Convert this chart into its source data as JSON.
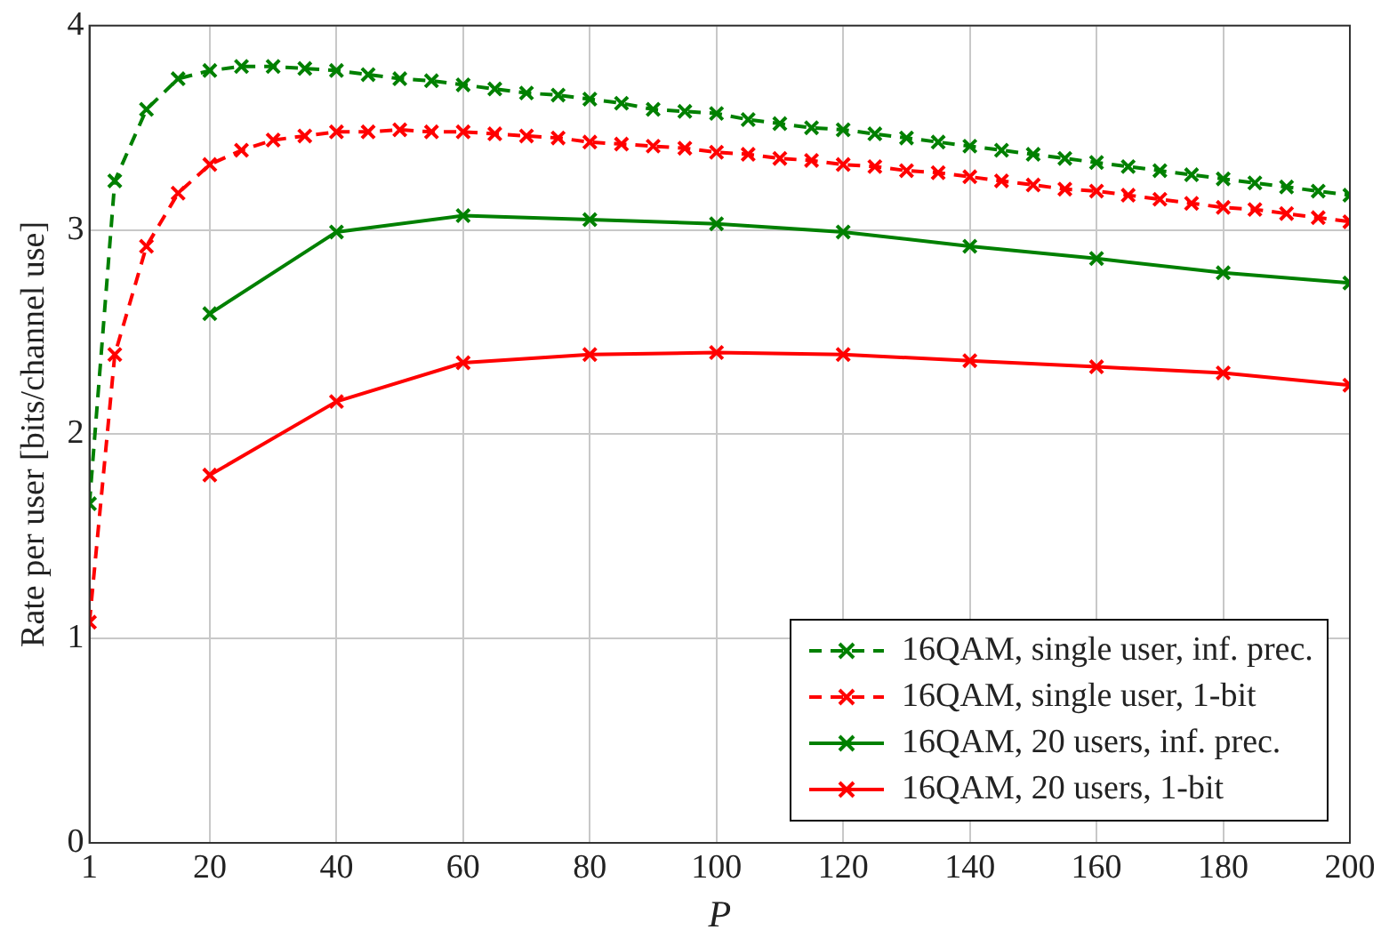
{
  "chart_data": {
    "type": "line",
    "xlabel": "P",
    "ylabel": "Rate per user [bits/channel use]",
    "xlim": [
      1,
      200
    ],
    "xticks": [
      1,
      20,
      40,
      60,
      80,
      100,
      120,
      140,
      160,
      180,
      200
    ],
    "ylim": [
      0,
      4
    ],
    "yticks": [
      0,
      1,
      2,
      3,
      4
    ],
    "grid": true,
    "legend": "bottom right",
    "marker": "cross",
    "series": [
      {
        "name": "16QAM, single user, inf. prec.",
        "color": "#008000",
        "line_style": "dashed",
        "x": [
          1,
          5,
          10,
          15,
          20,
          25,
          30,
          35,
          40,
          45,
          50,
          55,
          60,
          65,
          70,
          75,
          80,
          85,
          90,
          95,
          100,
          105,
          110,
          115,
          120,
          125,
          130,
          135,
          140,
          145,
          150,
          155,
          160,
          165,
          170,
          175,
          180,
          185,
          190,
          195,
          200
        ],
        "values": [
          1.66,
          3.24,
          3.59,
          3.74,
          3.78,
          3.8,
          3.8,
          3.79,
          3.78,
          3.76,
          3.74,
          3.73,
          3.71,
          3.69,
          3.67,
          3.66,
          3.64,
          3.62,
          3.59,
          3.58,
          3.57,
          3.54,
          3.52,
          3.5,
          3.49,
          3.47,
          3.45,
          3.43,
          3.41,
          3.39,
          3.37,
          3.35,
          3.33,
          3.31,
          3.29,
          3.27,
          3.25,
          3.23,
          3.21,
          3.19,
          3.17
        ]
      },
      {
        "name": "16QAM, single user, 1-bit",
        "color": "#ff0000",
        "line_style": "dashed",
        "x": [
          1,
          5,
          10,
          15,
          20,
          25,
          30,
          35,
          40,
          45,
          50,
          55,
          60,
          65,
          70,
          75,
          80,
          85,
          90,
          95,
          100,
          105,
          110,
          115,
          120,
          125,
          130,
          135,
          140,
          145,
          150,
          155,
          160,
          165,
          170,
          175,
          180,
          185,
          190,
          195,
          200
        ],
        "values": [
          1.08,
          2.39,
          2.92,
          3.18,
          3.32,
          3.39,
          3.44,
          3.46,
          3.48,
          3.48,
          3.49,
          3.48,
          3.48,
          3.47,
          3.46,
          3.45,
          3.43,
          3.42,
          3.41,
          3.4,
          3.38,
          3.37,
          3.35,
          3.34,
          3.32,
          3.31,
          3.29,
          3.28,
          3.26,
          3.24,
          3.22,
          3.2,
          3.19,
          3.17,
          3.15,
          3.13,
          3.11,
          3.1,
          3.08,
          3.06,
          3.04
        ]
      },
      {
        "name": "16QAM, 20 users, inf. prec.",
        "color": "#008000",
        "line_style": "solid",
        "x": [
          20,
          40,
          60,
          80,
          100,
          120,
          140,
          160,
          180,
          200
        ],
        "values": [
          2.59,
          2.99,
          3.07,
          3.05,
          3.03,
          2.99,
          2.92,
          2.86,
          2.79,
          2.74
        ]
      },
      {
        "name": "16QAM, 20 users, 1-bit",
        "color": "#ff0000",
        "line_style": "solid",
        "x": [
          20,
          40,
          60,
          80,
          100,
          120,
          140,
          160,
          180,
          200
        ],
        "values": [
          1.8,
          2.16,
          2.35,
          2.39,
          2.4,
          2.39,
          2.36,
          2.33,
          2.3,
          2.24
        ]
      }
    ]
  }
}
